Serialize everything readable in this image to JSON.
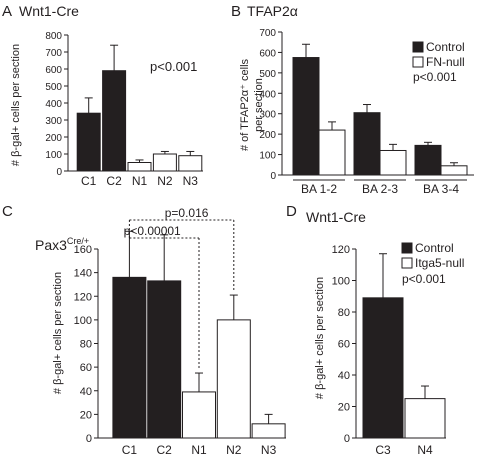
{
  "colors": {
    "filled": "#231f20",
    "open": "#ffffff",
    "stroke": "#231f20"
  },
  "chart_data": [
    {
      "panel_letter": "A",
      "title": "Wnt1-Cre",
      "type": "bar",
      "ylabel": "# β-gal+ cells per section",
      "ylim": [
        0,
        800
      ],
      "yticks": [
        0,
        100,
        200,
        300,
        400,
        500,
        600,
        700,
        800
      ],
      "categories": [
        "C1",
        "C2",
        "N1",
        "N2",
        "N3"
      ],
      "values": [
        340,
        590,
        50,
        100,
        90
      ],
      "errors": [
        90,
        150,
        15,
        15,
        25
      ],
      "fills": [
        "filled",
        "filled",
        "open",
        "open",
        "open"
      ],
      "annotation": "p<0.001"
    },
    {
      "panel_letter": "B",
      "title": "TFAP2α",
      "type": "bar",
      "ylabel_line1": "# of TFAP2α⁺ cells",
      "ylabel_line2": "per section",
      "ylim": [
        0,
        700
      ],
      "yticks": [
        0,
        100,
        200,
        300,
        400,
        500,
        600,
        700
      ],
      "categories": [
        "BA 1-2",
        "BA 2-3",
        "BA 3-4"
      ],
      "series": [
        {
          "name": "Control",
          "values": [
            575,
            305,
            145
          ],
          "errors": [
            65,
            40,
            15
          ],
          "fill": "filled"
        },
        {
          "name": "FN-null",
          "values": [
            220,
            120,
            45
          ],
          "errors": [
            40,
            30,
            15
          ],
          "fill": "open"
        }
      ],
      "annotation": "p<0.001"
    },
    {
      "panel_letter": "C",
      "title": "Pax3",
      "title_sup": "Cre/+",
      "type": "bar",
      "ylabel": "# β-gal+ cells per section",
      "ylim": [
        0,
        160
      ],
      "yticks": [
        0,
        20,
        40,
        60,
        80,
        100,
        120,
        140,
        160
      ],
      "categories": [
        "C1",
        "C2",
        "N1",
        "N2",
        "N3"
      ],
      "values": [
        136,
        133,
        39,
        100,
        12
      ],
      "errors": [
        39,
        39,
        16,
        21,
        8
      ],
      "fills": [
        "filled",
        "filled",
        "open",
        "open",
        "open"
      ],
      "brackets": [
        {
          "label": "p=0.016",
          "from": 0,
          "to": 3
        },
        {
          "label": "p<0.00001",
          "from": 0,
          "to": 2
        }
      ]
    },
    {
      "panel_letter": "D",
      "title": "Wnt1-Cre",
      "type": "bar",
      "ylabel": "# β-gal+ cells per section",
      "ylim": [
        0,
        120
      ],
      "yticks": [
        0,
        20,
        40,
        60,
        80,
        100,
        120
      ],
      "categories": [
        "C3",
        "N4"
      ],
      "values": [
        89,
        25
      ],
      "errors": [
        28,
        8
      ],
      "fills": [
        "filled",
        "open"
      ],
      "legend": [
        {
          "label": "Control",
          "fill": "filled"
        },
        {
          "label": "Itga5-null",
          "fill": "open"
        }
      ],
      "annotation": "p<0.001"
    }
  ]
}
